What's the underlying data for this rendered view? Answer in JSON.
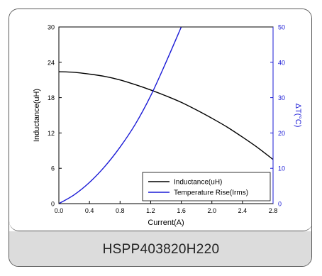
{
  "colors": {
    "inductance": "#000000",
    "temperature": "#1a1ad6",
    "axis_right": "#1a1ad6",
    "frame": "#000000",
    "footer_bg": "#dcdcdc"
  },
  "footer": {
    "label": "HSPP403820H220"
  },
  "chart_data": {
    "type": "line",
    "title": "",
    "xlabel": "Current(A)",
    "ylabel": "Inductance(uH)",
    "y2label": "ΔT(°C)",
    "xlim": [
      0,
      2.8
    ],
    "ylim": [
      0,
      30
    ],
    "y2lim": [
      0,
      50
    ],
    "x_ticks": [
      "0.0",
      "0.4",
      "0.8",
      "1.2",
      "1.6",
      "2.0",
      "2.4",
      "2.8"
    ],
    "y_ticks": [
      "0",
      "6",
      "12",
      "18",
      "24",
      "30"
    ],
    "y2_ticks": [
      "0",
      "10",
      "20",
      "30",
      "40",
      "50"
    ],
    "grid": false,
    "legend_position": "bottom-right",
    "series": [
      {
        "name": "Inductance(uH)",
        "axis": "left",
        "x": [
          0.0,
          0.2,
          0.4,
          0.6,
          0.8,
          1.0,
          1.2,
          1.4,
          1.6,
          1.8,
          2.0,
          2.2,
          2.4,
          2.6,
          2.8
        ],
        "y": [
          22.4,
          22.3,
          22.0,
          21.6,
          21.0,
          20.2,
          19.3,
          18.3,
          17.2,
          15.9,
          14.5,
          13.0,
          11.3,
          9.5,
          7.5
        ]
      },
      {
        "name": "Temperature Rise(Irms)",
        "axis": "right",
        "x": [
          0.0,
          0.2,
          0.4,
          0.6,
          0.8,
          1.0,
          1.2,
          1.4,
          1.6
        ],
        "y": [
          0,
          2.5,
          6.0,
          10.5,
          16.0,
          22.5,
          30.5,
          40.0,
          50.0
        ]
      }
    ]
  }
}
